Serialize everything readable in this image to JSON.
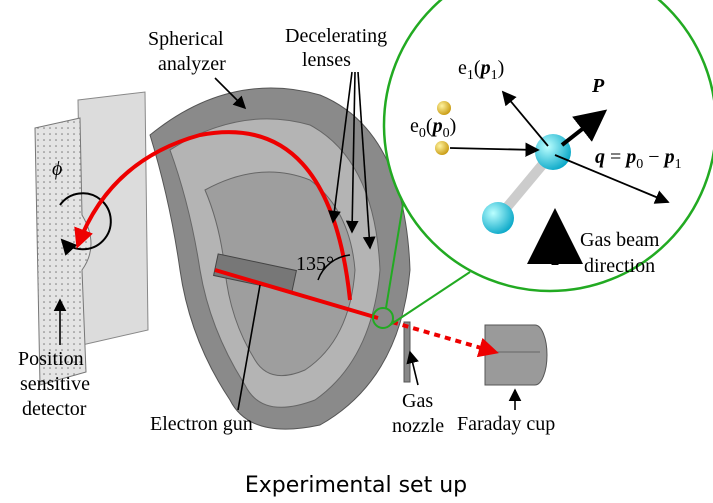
{
  "labels": {
    "spherical_analyzer": [
      "Spherical",
      "analyzer"
    ],
    "decelerating_lenses": [
      "Decelerating",
      "lenses"
    ],
    "e1": [
      "e",
      "1",
      "(",
      "p",
      "1",
      ")"
    ],
    "e0": [
      "e",
      "0",
      "(",
      "p",
      "0",
      ")"
    ],
    "P": "P",
    "q": [
      "q",
      " = ",
      "p",
      "0",
      " − ",
      "p",
      "1"
    ],
    "gas_beam": [
      "Gas beam",
      "direction"
    ],
    "phi": "ϕ",
    "angle": "135°",
    "detector": [
      "Position",
      "sensitive",
      "detector"
    ],
    "electron_gun": "Electron gun",
    "gas_nozzle": [
      "Gas",
      "nozzle"
    ],
    "faraday_cup": "Faraday cup"
  },
  "caption": "Experimental set up"
}
